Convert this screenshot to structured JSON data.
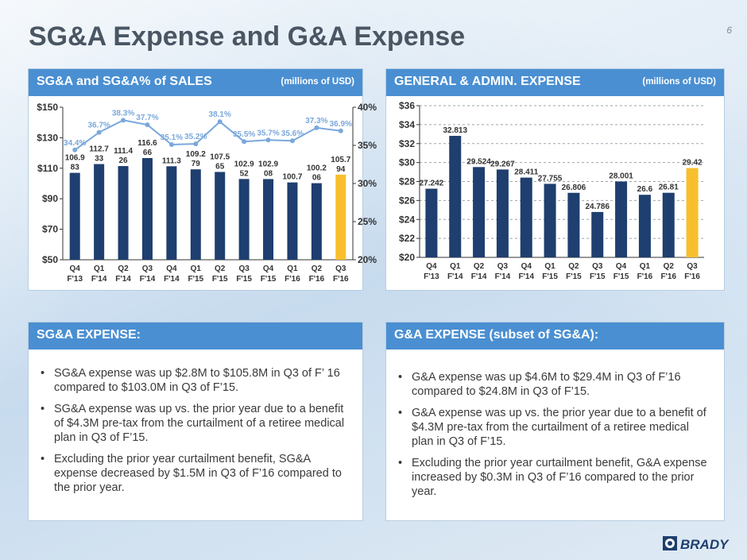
{
  "slide": {
    "title": "SG&A Expense and G&A Expense",
    "page_number": "6"
  },
  "colors": {
    "header_blue": "#4a8fd2",
    "bar_navy": "#1e3f6f",
    "bar_highlight": "#f8bf2d",
    "line_blue": "#7aa8dc"
  },
  "sga_chart": {
    "header": "SG&A and SG&A% of SALES",
    "units": "(millions of USD)"
  },
  "ga_chart": {
    "header": "GENERAL & ADMIN. EXPENSE",
    "units": "(millions of USD)"
  },
  "sga_expense": {
    "header": "SG&A EXPENSE:",
    "bullets": [
      "SG&A expense was up $2.8M to $105.8M in Q3 of F’ 16 compared to $103.0M in Q3 of F’15.",
      "SG&A expense was up vs. the prior year due to a benefit of $4.3M pre-tax from the curtailment of a retiree medical plan in Q3 of F’15.",
      "Excluding the prior year curtailment benefit, SG&A expense decreased by $1.5M in Q3 of F’16 compared to the prior year."
    ]
  },
  "ga_expense": {
    "header": "G&A EXPENSE (subset of SG&A):",
    "bullets": [
      "G&A expense was up $4.6M to $29.4M in Q3 of F’16 compared to $24.8M in Q3 of F’15.",
      "G&A expense was up vs. the prior year due to a benefit of $4.3M pre-tax from the curtailment of a retiree medical plan in Q3 of F’15.",
      "Excluding the prior year curtailment benefit, G&A expense increased by $0.3M in Q3 of F’16 compared to the prior year."
    ]
  },
  "logo": {
    "text": "BRADY"
  },
  "chart_data": [
    {
      "type": "bar",
      "title": "SG&A and SG&A% of SALES",
      "categories": [
        [
          "Q4",
          "F'13"
        ],
        [
          "Q1",
          "F'14"
        ],
        [
          "Q2",
          "F'14"
        ],
        [
          "Q3",
          "F'14"
        ],
        [
          "Q4",
          "F'14"
        ],
        [
          "Q1",
          "F'15"
        ],
        [
          "Q2",
          "F'15"
        ],
        [
          "Q3",
          "F'15"
        ],
        [
          "Q4",
          "F'15"
        ],
        [
          "Q1",
          "F'16"
        ],
        [
          "Q2",
          "F'16"
        ],
        [
          "Q3",
          "F'16"
        ]
      ],
      "series": [
        {
          "name": "SG&A",
          "axis": "left",
          "values": [
            106.983,
            112.733,
            111.426,
            116.666,
            111.3,
            109.279,
            107.565,
            102.952,
            102.908,
            100.7,
            100.206,
            105.794
          ]
        },
        {
          "name": "SG&A% of SALES",
          "axis": "right",
          "type": "line",
          "values": [
            34.4,
            36.7,
            38.3,
            37.7,
            35.1,
            35.2,
            38.1,
            35.5,
            35.7,
            35.6,
            37.3,
            36.9
          ]
        }
      ],
      "bar_labels": [
        [
          "106.9",
          "83"
        ],
        [
          "112.7",
          "33"
        ],
        [
          "111.4",
          "26"
        ],
        [
          "116.6",
          "66"
        ],
        [
          "111.3"
        ],
        [
          "109.2",
          "79"
        ],
        [
          "107.5",
          "65"
        ],
        [
          "102.9",
          "52"
        ],
        [
          "102.9",
          "08"
        ],
        [
          "100.7"
        ],
        [
          "100.2",
          "06"
        ],
        [
          "105.7",
          "94"
        ]
      ],
      "line_labels": [
        "34.4%",
        "36.7%",
        "38.3%",
        "37.7%",
        "35.1%",
        "35.2%",
        "38.1%",
        "35.5%",
        "35.7%",
        "35.6%",
        "37.3%",
        "36.9%"
      ],
      "y_left": {
        "range": [
          50,
          150
        ],
        "ticks": [
          "$50",
          "$70",
          "$90",
          "$110",
          "$130",
          "$150"
        ],
        "tick_values": [
          50,
          70,
          90,
          110,
          130,
          150
        ]
      },
      "y_right": {
        "range": [
          20,
          40
        ],
        "ticks": [
          "20%",
          "25%",
          "30%",
          "35%",
          "40%"
        ],
        "tick_values": [
          20,
          25,
          30,
          35,
          40
        ]
      },
      "highlight_index": 11
    },
    {
      "type": "bar",
      "title": "GENERAL & ADMIN. EXPENSE",
      "categories": [
        [
          "Q4",
          "F'13"
        ],
        [
          "Q1",
          "F'14"
        ],
        [
          "Q2",
          "F'14"
        ],
        [
          "Q3",
          "F'14"
        ],
        [
          "Q4",
          "F'14"
        ],
        [
          "Q1",
          "F'15"
        ],
        [
          "Q2",
          "F'15"
        ],
        [
          "Q3",
          "F'15"
        ],
        [
          "Q4",
          "F'15"
        ],
        [
          "Q1",
          "F'16"
        ],
        [
          "Q2",
          "F'16"
        ],
        [
          "Q3",
          "F'16"
        ]
      ],
      "values": [
        27.242,
        32.813,
        29.524,
        29.267,
        28.411,
        27.755,
        26.806,
        24.786,
        28.001,
        26.6,
        26.81,
        29.42
      ],
      "labels": [
        "27.242",
        "32.813",
        "29.524",
        "29.267",
        "28.411",
        "27.755",
        "26.806",
        "24.786",
        "28.001",
        "26.6",
        "26.81",
        "29.42"
      ],
      "y": {
        "range": [
          20,
          36
        ],
        "ticks": [
          "$20",
          "$22",
          "$24",
          "$26",
          "$28",
          "$30",
          "$32",
          "$34",
          "$36"
        ],
        "tick_values": [
          20,
          22,
          24,
          26,
          28,
          30,
          32,
          34,
          36
        ]
      },
      "grid": true,
      "highlight_index": 11
    }
  ]
}
